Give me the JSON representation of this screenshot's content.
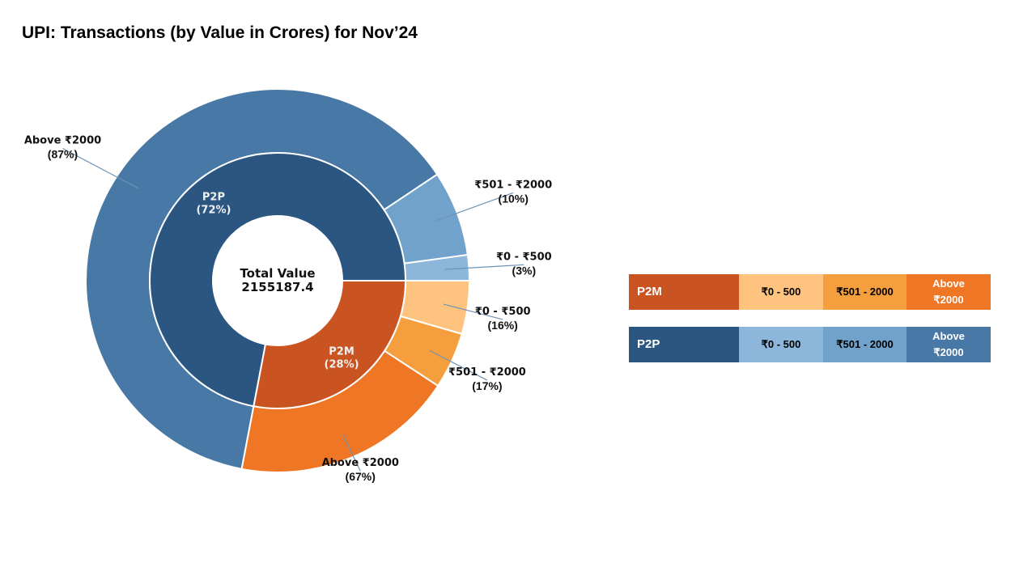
{
  "chart_data": {
    "type": "pie",
    "style": "nested-donut",
    "title": "UPI: Transactions (by Value in Crores) for Nov’24",
    "center_label": {
      "line1": "Total Value",
      "line2": "2155187.4"
    },
    "inner_ring": [
      {
        "name": "P2P",
        "share_pct": 72,
        "pct_label": "(72%)",
        "color": "#2b5681"
      },
      {
        "name": "P2M",
        "share_pct": 28,
        "pct_label": "(28%)",
        "color": "#c95422"
      }
    ],
    "outer_ring": [
      {
        "parent": "P2P",
        "segments": [
          {
            "label": "Above ₹2000",
            "pct_label": "(87%)",
            "share_pct": 87,
            "color": "#4878a6"
          },
          {
            "label": "₹501 - ₹2000",
            "pct_label": "(10%)",
            "share_pct": 10,
            "color": "#71a2cb"
          },
          {
            "label": "₹0 - ₹500",
            "pct_label": "(3%)",
            "share_pct": 3,
            "color": "#8cb7da"
          }
        ]
      },
      {
        "parent": "P2M",
        "segments": [
          {
            "label": "Above ₹2000",
            "pct_label": "(67%)",
            "share_pct": 67,
            "color": "#ef7624"
          },
          {
            "label": "₹501 - ₹2000",
            "pct_label": "(17%)",
            "share_pct": 17,
            "color": "#f59e3e"
          },
          {
            "label": "₹0 - ₹500",
            "pct_label": "(16%)",
            "share_pct": 16,
            "color": "#fec47f"
          }
        ]
      }
    ],
    "legend": {
      "rows": [
        {
          "name": "P2M",
          "head_color": "#c95422",
          "cells": [
            {
              "label": "₹0 - 500",
              "color": "#fec47f"
            },
            {
              "label": "₹501 - 2000",
              "color": "#f59e3e"
            },
            {
              "label": "Above ₹2000",
              "color": "#ef7624"
            }
          ]
        },
        {
          "name": "P2P",
          "head_color": "#2b5681",
          "cells": [
            {
              "label": "₹0 - 500",
              "color": "#8cb7da"
            },
            {
              "label": "₹501 - 2000",
              "color": "#71a2cb"
            },
            {
              "label": "Above ₹2000",
              "color": "#4878a6"
            }
          ]
        }
      ]
    }
  }
}
